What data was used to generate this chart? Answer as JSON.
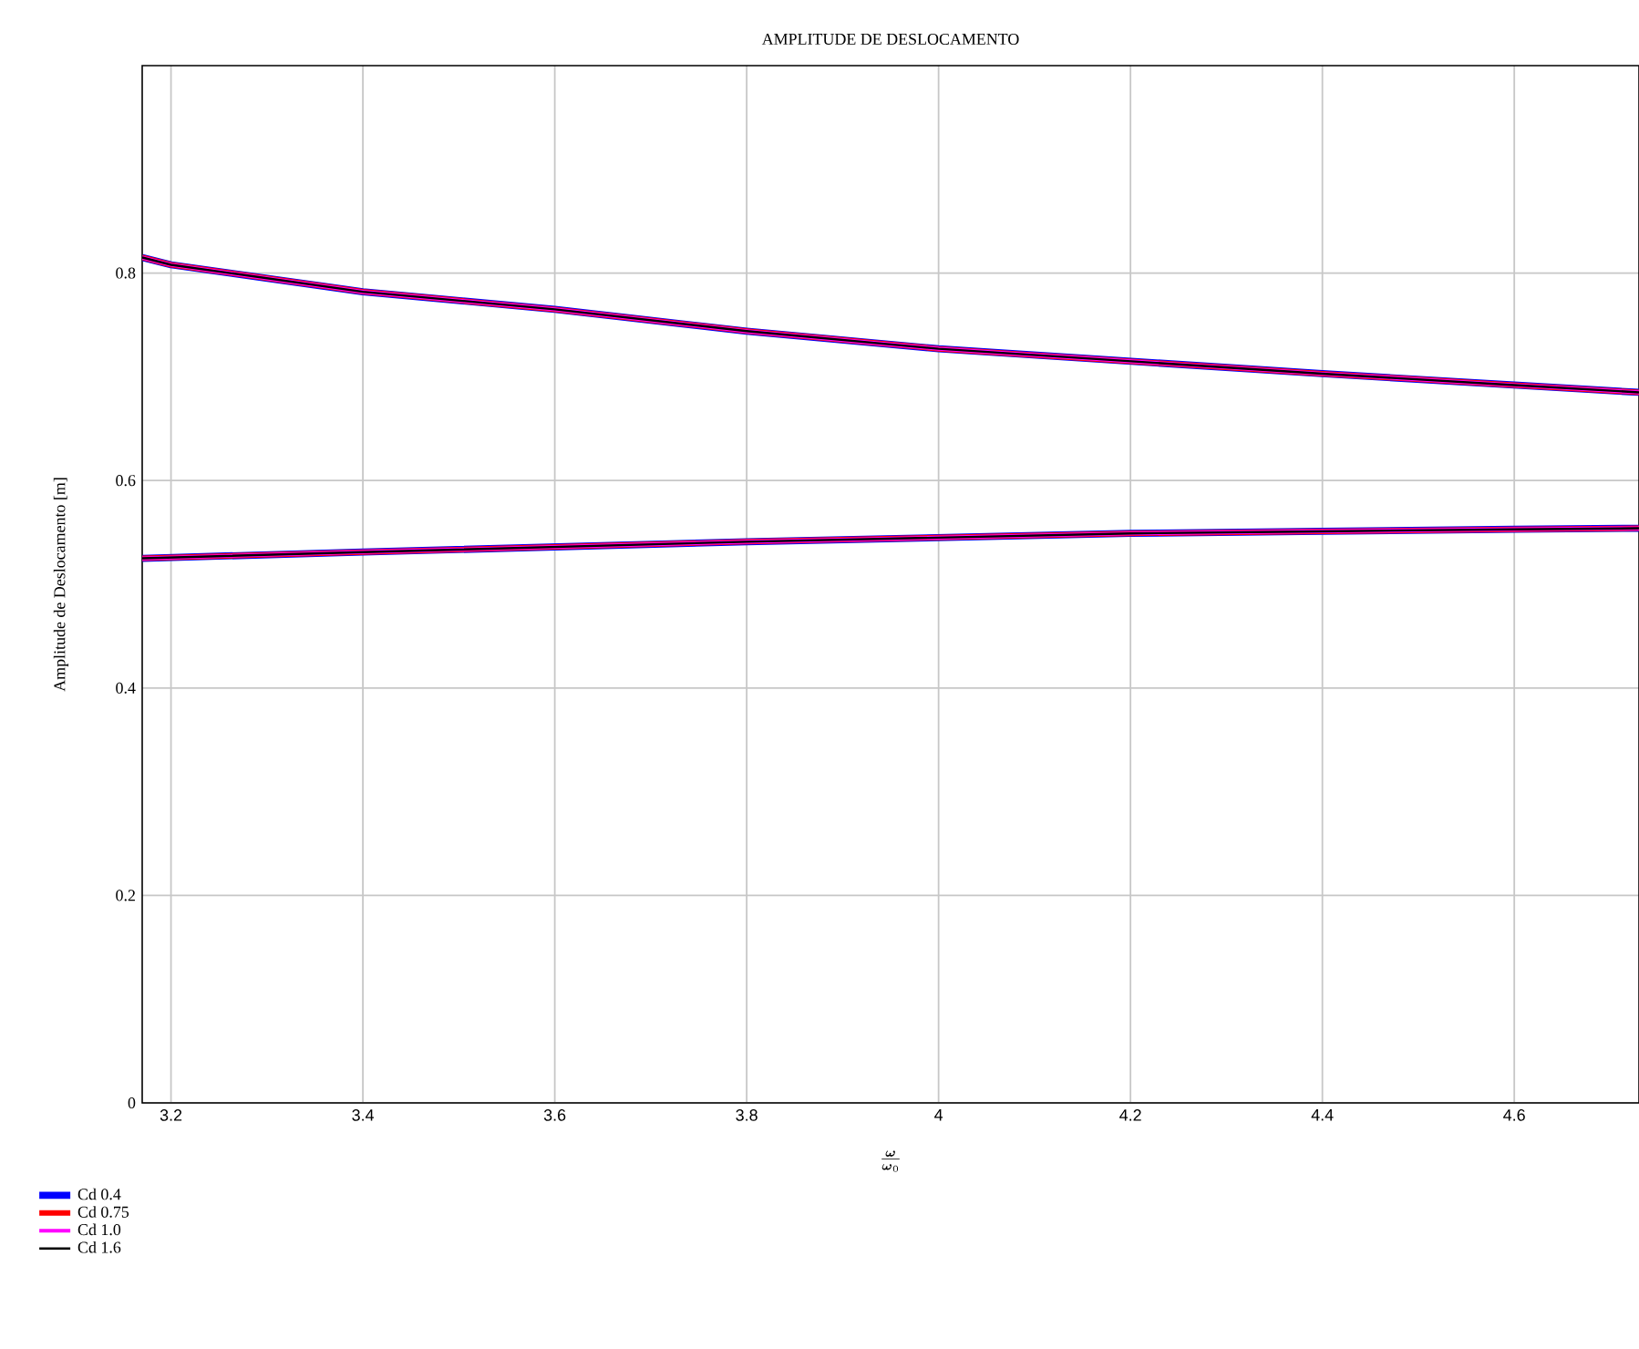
{
  "chart_data": {
    "type": "line",
    "title": "AMPLITUDE DE DESLOCAMENTO",
    "xlabel": "\\frac{\\boldsymbol{\\omega}}{\\boldsymbol{\\omega}_0}",
    "ylabel": "Amplitude de Deslocamento [m]",
    "xlim": [
      3.17,
      4.73
    ],
    "ylim": [
      0,
      1
    ],
    "xticks": [
      3.2,
      3.4,
      3.6,
      3.8,
      4,
      4.2,
      4.4,
      4.6
    ],
    "yticks": [
      0,
      0.2,
      0.4,
      0.6,
      0.8
    ],
    "grid": true,
    "legend": "bottom left",
    "series": [
      {
        "name": "Cd 0.4",
        "color": "#0000ff",
        "x": [
          3.17,
          3.2,
          3.4,
          3.6,
          3.8,
          4.0,
          4.2,
          4.4,
          4.6,
          4.73
        ],
        "values": [
          0.815,
          0.808,
          0.782,
          0.765,
          0.744,
          0.727,
          0.715,
          0.703,
          0.692,
          0.685
        ]
      },
      {
        "name": "Cd 0.75",
        "color": "#ff0000",
        "x": [
          3.17,
          3.2,
          3.4,
          3.6,
          3.8,
          4.0,
          4.2,
          4.4,
          4.6,
          4.73
        ],
        "values": [
          0.815,
          0.808,
          0.782,
          0.765,
          0.744,
          0.727,
          0.715,
          0.703,
          0.692,
          0.685
        ]
      },
      {
        "name": "Cd 1.0",
        "color": "#ff00ff",
        "x": [
          3.17,
          3.2,
          3.4,
          3.6,
          3.8,
          4.0,
          4.2,
          4.4,
          4.6,
          4.73
        ],
        "values": [
          0.815,
          0.808,
          0.782,
          0.765,
          0.744,
          0.727,
          0.715,
          0.703,
          0.692,
          0.685
        ]
      },
      {
        "name": "Cd 1.6",
        "color": "#000000",
        "x": [
          3.17,
          3.2,
          3.4,
          3.6,
          3.8,
          4.0,
          4.2,
          4.4,
          4.6,
          4.73
        ],
        "values": [
          0.815,
          0.808,
          0.782,
          0.765,
          0.744,
          0.727,
          0.715,
          0.703,
          0.692,
          0.685
        ]
      },
      {
        "color": "#0000ff",
        "x": [
          3.17,
          3.4,
          3.6,
          3.8,
          4.0,
          4.2,
          4.4,
          4.6,
          4.73
        ],
        "values": [
          0.525,
          0.531,
          0.536,
          0.541,
          0.545,
          0.549,
          0.551,
          0.553,
          0.554
        ]
      },
      {
        "color": "#ff0000",
        "x": [
          3.17,
          3.4,
          3.6,
          3.8,
          4.0,
          4.2,
          4.4,
          4.6,
          4.73
        ],
        "values": [
          0.525,
          0.531,
          0.536,
          0.541,
          0.545,
          0.549,
          0.551,
          0.553,
          0.554
        ]
      },
      {
        "color": "#ff00ff",
        "x": [
          3.17,
          3.4,
          3.6,
          3.8,
          4.0,
          4.2,
          4.4,
          4.6,
          4.73
        ],
        "values": [
          0.525,
          0.531,
          0.536,
          0.541,
          0.545,
          0.549,
          0.551,
          0.553,
          0.554
        ]
      },
      {
        "color": "#000000",
        "x": [
          3.17,
          3.4,
          3.6,
          3.8,
          4.0,
          4.2,
          4.4,
          4.6,
          4.73
        ],
        "values": [
          0.525,
          0.531,
          0.536,
          0.541,
          0.545,
          0.549,
          0.551,
          0.553,
          0.554
        ]
      }
    ]
  }
}
